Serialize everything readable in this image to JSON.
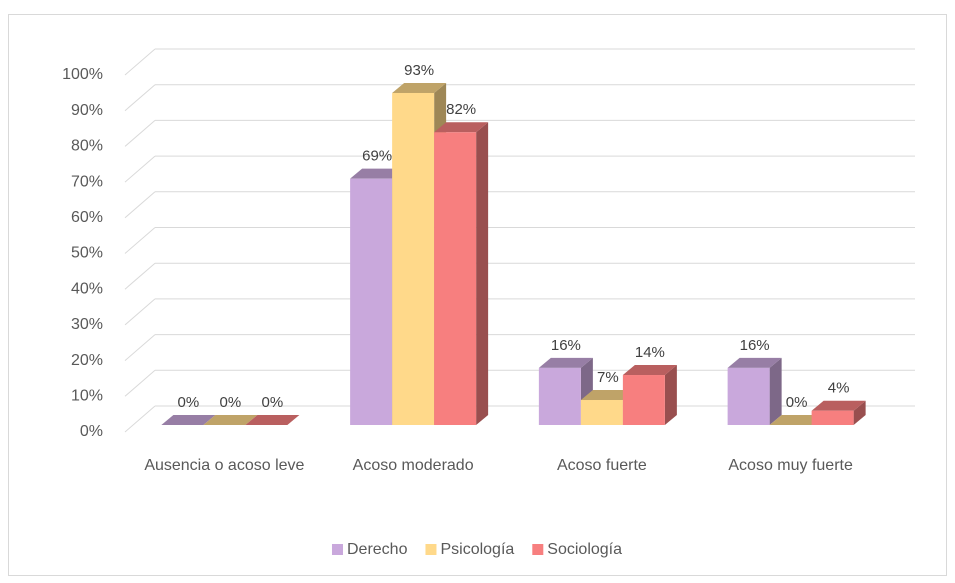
{
  "chart_data": {
    "type": "bar3d",
    "categories": [
      "Ausencia o acoso leve",
      "Acoso moderado",
      "Acoso fuerte",
      "Acoso muy fuerte"
    ],
    "series": [
      {
        "name": "Derecho",
        "color": "#c9a8dc",
        "values": [
          0,
          69,
          16,
          16
        ],
        "value_labels": [
          "0%",
          "69%",
          "16%",
          "16%"
        ]
      },
      {
        "name": "Psicología",
        "color": "#ffd98a",
        "values": [
          0,
          93,
          7,
          0
        ],
        "value_labels": [
          "0%",
          "93%",
          "7%",
          "0%"
        ]
      },
      {
        "name": "Sociología",
        "color": "#f77f7f",
        "values": [
          0,
          82,
          14,
          4
        ],
        "value_labels": [
          "0%",
          "82%",
          "14%",
          "4%"
        ]
      }
    ],
    "ylim": [
      0,
      100
    ],
    "yticks": [
      {
        "value": 0,
        "label": "0%"
      },
      {
        "value": 10,
        "label": "10%"
      },
      {
        "value": 20,
        "label": "20%"
      },
      {
        "value": 30,
        "label": "30%"
      },
      {
        "value": 40,
        "label": "40%"
      },
      {
        "value": 50,
        "label": "50%"
      },
      {
        "value": 60,
        "label": "60%"
      },
      {
        "value": 70,
        "label": "70%"
      },
      {
        "value": 80,
        "label": "80%"
      },
      {
        "value": 90,
        "label": "90%"
      },
      {
        "value": 100,
        "label": "100%"
      }
    ],
    "grid": true,
    "legend": "bottom"
  }
}
